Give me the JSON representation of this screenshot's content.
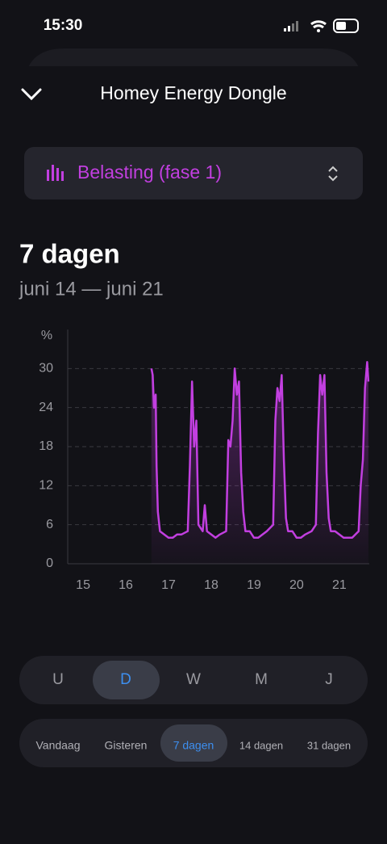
{
  "status_bar": {
    "time": "15:30"
  },
  "header": {
    "title": "Homey Energy Dongle"
  },
  "selector": {
    "label": "Belasting (fase 1)"
  },
  "period": {
    "title": "7 dagen",
    "range": "juni 14 — juni 21"
  },
  "chart_data": {
    "type": "line",
    "y_label": "%",
    "color": "#c23fe0",
    "grid": true,
    "x": [
      16.6,
      16.63,
      16.66,
      16.7,
      16.72,
      16.75,
      16.8,
      16.9,
      17.0,
      17.1,
      17.2,
      17.3,
      17.45,
      17.5,
      17.55,
      17.6,
      17.65,
      17.7,
      17.8,
      17.85,
      17.9,
      18.0,
      18.1,
      18.2,
      18.35,
      18.4,
      18.45,
      18.5,
      18.55,
      18.6,
      18.65,
      18.7,
      18.75,
      18.8,
      18.9,
      19.0,
      19.1,
      19.2,
      19.3,
      19.45,
      19.5,
      19.55,
      19.6,
      19.65,
      19.7,
      19.75,
      19.8,
      19.9,
      20.0,
      20.1,
      20.2,
      20.35,
      20.45,
      20.5,
      20.55,
      20.6,
      20.65,
      20.7,
      20.75,
      20.8,
      20.9,
      21.0,
      21.1,
      21.2,
      21.3,
      21.45,
      21.5,
      21.55,
      21.6,
      21.65,
      21.68
    ],
    "values": [
      30,
      29,
      24,
      26,
      15,
      8,
      5,
      4.5,
      4,
      4,
      4.5,
      4.5,
      5,
      15,
      28,
      18,
      22,
      6,
      5,
      9,
      5,
      4.5,
      4,
      4.5,
      5,
      19,
      18,
      22,
      30,
      26,
      28,
      14,
      8,
      5,
      5,
      4,
      4,
      4.5,
      5,
      6,
      22,
      27,
      25,
      29,
      16,
      7,
      5,
      5,
      4,
      4,
      4.5,
      5,
      6,
      20,
      29,
      26,
      29,
      14,
      7,
      5,
      5,
      4.5,
      4,
      4,
      4,
      5,
      12,
      16,
      27,
      31,
      28
    ],
    "xlim": [
      14.64,
      21.7
    ],
    "xticks": [
      15,
      16,
      17,
      18,
      19,
      20,
      21
    ],
    "ylim": [
      0,
      36
    ],
    "yticks": [
      0,
      6,
      12,
      18,
      24,
      30
    ]
  },
  "interval_tabs": [
    "U",
    "D",
    "W",
    "M",
    "J"
  ],
  "range_tabs": [
    "Vandaag",
    "Gisteren",
    "7 dagen",
    "14 dagen",
    "31 dagen"
  ]
}
